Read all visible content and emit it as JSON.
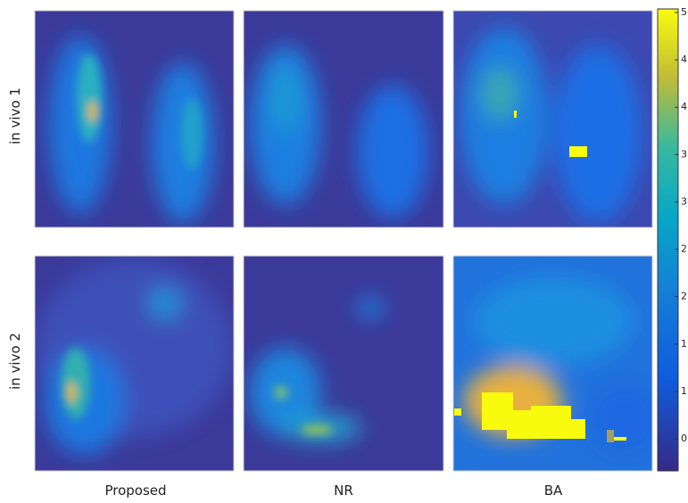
{
  "columns": [
    "Proposed",
    "NR",
    "BA"
  ],
  "rows": [
    "in vivo 1",
    "in vivo 2"
  ],
  "colorbar": {
    "tick_labels": [
      "5",
      "4.",
      "4",
      "3.",
      "3",
      "2.",
      "2",
      "1.",
      "1",
      "0."
    ]
  }
}
